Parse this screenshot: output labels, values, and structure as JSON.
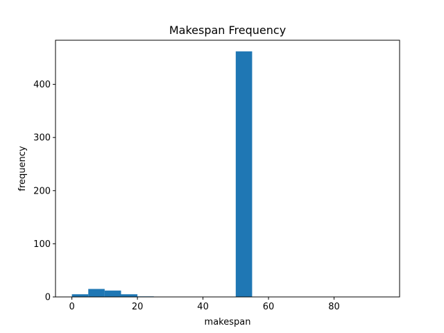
{
  "chart_data": {
    "type": "bar",
    "title": "Makespan Frequency",
    "xlabel": "makespan",
    "ylabel": "frequency",
    "xlim": [
      -5,
      100
    ],
    "ylim": [
      0,
      483
    ],
    "xticks": [
      0,
      20,
      40,
      60,
      80
    ],
    "yticks": [
      0,
      100,
      200,
      300,
      400
    ],
    "grid": false,
    "bar_color": "#1f77b4",
    "bins": [
      {
        "x0": 0,
        "x1": 5,
        "value": 5
      },
      {
        "x0": 5,
        "x1": 10,
        "value": 15
      },
      {
        "x0": 10,
        "x1": 15,
        "value": 12
      },
      {
        "x0": 15,
        "x1": 20,
        "value": 5
      },
      {
        "x0": 20,
        "x1": 25,
        "value": 1
      },
      {
        "x0": 25,
        "x1": 30,
        "value": 0
      },
      {
        "x0": 30,
        "x1": 35,
        "value": 0
      },
      {
        "x0": 35,
        "x1": 40,
        "value": 0
      },
      {
        "x0": 40,
        "x1": 45,
        "value": 0
      },
      {
        "x0": 45,
        "x1": 50,
        "value": 0
      },
      {
        "x0": 50,
        "x1": 55,
        "value": 462
      },
      {
        "x0": 55,
        "x1": 60,
        "value": 0
      },
      {
        "x0": 60,
        "x1": 65,
        "value": 0
      },
      {
        "x0": 65,
        "x1": 70,
        "value": 0
      },
      {
        "x0": 70,
        "x1": 75,
        "value": 0
      },
      {
        "x0": 75,
        "x1": 80,
        "value": 0
      },
      {
        "x0": 80,
        "x1": 85,
        "value": 0
      },
      {
        "x0": 85,
        "x1": 90,
        "value": 0
      },
      {
        "x0": 90,
        "x1": 95,
        "value": 0
      }
    ]
  }
}
